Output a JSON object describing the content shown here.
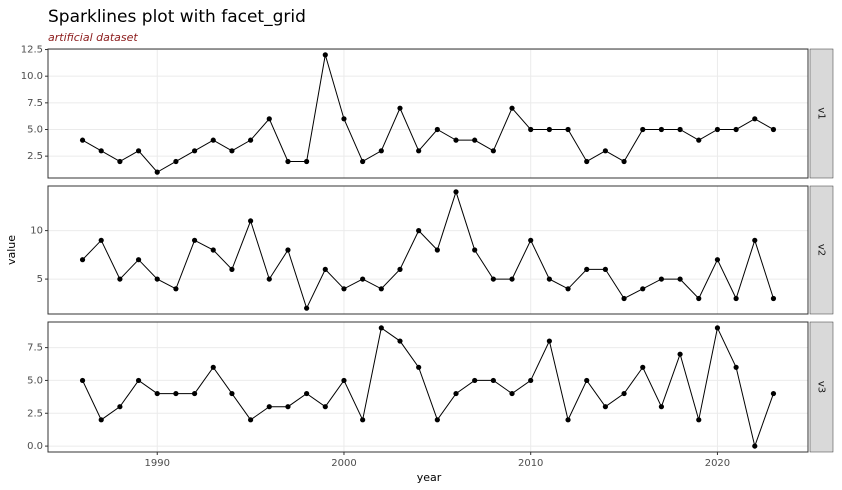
{
  "chart_data": {
    "type": "line",
    "title": "Sparklines plot with facet_grid",
    "subtitle": "artificial dataset",
    "x_label": "year",
    "y_label": "value",
    "color": "#000000",
    "grid": true,
    "x": [
      1986,
      1987,
      1988,
      1989,
      1990,
      1991,
      1992,
      1993,
      1994,
      1995,
      1996,
      1997,
      1998,
      1999,
      2000,
      2001,
      2002,
      2003,
      2004,
      2005,
      2006,
      2007,
      2008,
      2009,
      2010,
      2011,
      2012,
      2013,
      2014,
      2015,
      2016,
      2017,
      2018,
      2019,
      2020,
      2021,
      2022,
      2023
    ],
    "xlim": [
      1984.15,
      2024.85
    ],
    "xticks": [
      1990,
      2000,
      2010,
      2020
    ],
    "facets": [
      {
        "name": "v1",
        "values": [
          4,
          3,
          2,
          3,
          1,
          2,
          3,
          4,
          3,
          4,
          6,
          2,
          2,
          12,
          6,
          2,
          3,
          7,
          3,
          5,
          4,
          4,
          3,
          7,
          5,
          5,
          5,
          2,
          3,
          2,
          5,
          5,
          5,
          4,
          5,
          5,
          6,
          5
        ],
        "ylim": [
          0.45,
          12.55
        ],
        "yticks": [
          2.5,
          {
            "value": 5,
            "label": "5.0"
          },
          7.5,
          {
            "value": 10,
            "label": "10.0"
          },
          12.5
        ]
      },
      {
        "name": "v2",
        "values": [
          7,
          9,
          5,
          7,
          5,
          4,
          9,
          8,
          6,
          11,
          5,
          8,
          2,
          6,
          4,
          5,
          4,
          6,
          10,
          8,
          14,
          8,
          5,
          5,
          9,
          5,
          4,
          6,
          6,
          3,
          4,
          5,
          5,
          3,
          7,
          3,
          9,
          3
        ],
        "ylim": [
          1.4,
          14.6
        ],
        "yticks": [
          5,
          10
        ]
      },
      {
        "name": "v3",
        "values": [
          5,
          2,
          3,
          5,
          4,
          4,
          4,
          6,
          4,
          2,
          3,
          3,
          4,
          3,
          5,
          2,
          9,
          8,
          6,
          2,
          4,
          5,
          5,
          4,
          5,
          8,
          2,
          5,
          3,
          4,
          6,
          3,
          7,
          2,
          9,
          6,
          0,
          4
        ],
        "ylim": [
          -0.45,
          9.45
        ],
        "yticks": [
          {
            "value": 0,
            "label": "0.0"
          },
          2.5,
          {
            "value": 5,
            "label": "5.0"
          },
          7.5
        ]
      }
    ]
  }
}
